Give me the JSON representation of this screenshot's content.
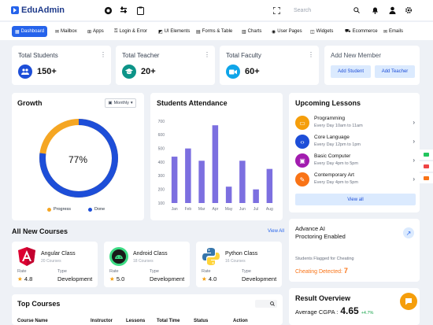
{
  "app": {
    "title": "EduAdmin"
  },
  "search": {
    "placeholder": "Search"
  },
  "nav": [
    {
      "label": "Dashboard",
      "icon": "dashboard-icon"
    },
    {
      "label": "Mailbox",
      "icon": "mail-icon"
    },
    {
      "label": "Apps",
      "icon": "apps-icon"
    },
    {
      "label": "Login & Error",
      "icon": "lock-icon"
    },
    {
      "label": "UI Elements",
      "icon": "ui-icon"
    },
    {
      "label": "Forms & Table",
      "icon": "form-icon"
    },
    {
      "label": "Charts",
      "icon": "chart-icon"
    },
    {
      "label": "User Pages",
      "icon": "user-icon"
    },
    {
      "label": "Widgets",
      "icon": "widget-icon"
    },
    {
      "label": "Ecommerce",
      "icon": "cart-icon"
    },
    {
      "label": "Emails",
      "icon": "email-icon"
    }
  ],
  "stats": [
    {
      "label": "Total Students",
      "value": "150+",
      "color": "#2563eb"
    },
    {
      "label": "Total Teacher",
      "value": "20+",
      "color": "#0d9488"
    },
    {
      "label": "Total Faculty",
      "value": "60+",
      "color": "#0ea5e9"
    }
  ],
  "add_member": {
    "title": "Add New Member",
    "student_btn": "Add Student",
    "teacher_btn": "Add Teacher"
  },
  "growth": {
    "title": "Growth",
    "period": "Monthly",
    "percent_label": "77%",
    "progress": 0.77,
    "legend": [
      {
        "label": "Progress",
        "color": "#f5a623"
      },
      {
        "label": "Done",
        "color": "#1d4ed8"
      }
    ]
  },
  "attendance": {
    "title": "Students Attendance"
  },
  "chart_data": {
    "type": "bar",
    "categories": [
      "Jan",
      "Feb",
      "Mar",
      "Apr",
      "May",
      "Jun",
      "Jul",
      "Aug"
    ],
    "values": [
      440,
      500,
      410,
      670,
      220,
      410,
      200,
      350
    ],
    "ylim": [
      100,
      700
    ],
    "yticks": [
      100,
      200,
      300,
      400,
      500,
      600,
      700
    ],
    "color": "#7c6fe0",
    "xlabel": "",
    "ylabel": "",
    "title": ""
  },
  "lessons": {
    "title": "Upcoming Lessons",
    "items": [
      {
        "name": "Programming",
        "time": "Every Day 10am to 11am",
        "color": "#f59e0b"
      },
      {
        "name": "Core Language",
        "time": "Every Day 12pm to 1pm",
        "color": "#1d4ed8"
      },
      {
        "name": "Basic Computer",
        "time": "Every Day 4pm to 5pm",
        "color": "#a21caf"
      },
      {
        "name": "Contemporary Art",
        "time": "Every Day 4pm to 5pm",
        "color": "#f97316"
      }
    ],
    "view_all": "View all"
  },
  "courses": {
    "title": "All New Courses",
    "view_all": "View All",
    "items": [
      {
        "name": "Angular Class",
        "count": "20 Courses",
        "rate_label": "Rate",
        "rate": "4.8",
        "type_label": "Type",
        "type": "Development"
      },
      {
        "name": "Android Class",
        "count": "18 Courses",
        "rate_label": "Rate",
        "rate": "5.0",
        "type_label": "Type",
        "type": "Development"
      },
      {
        "name": "Python Class",
        "count": "16 Courses",
        "rate_label": "Rate",
        "rate": "4.0",
        "type_label": "Type",
        "type": "Development"
      }
    ]
  },
  "proctoring": {
    "title_line1": "Advance AI",
    "title_line2": "Proctoring Enabled",
    "flagged": "Students Flagged for Cheating",
    "detected_label": "Cheating Detected:",
    "detected_value": "7"
  },
  "top_courses": {
    "title": "Top Courses",
    "columns": [
      "Course Name",
      "Instructor",
      "Lessons",
      "Total Time",
      "Status",
      "Action"
    ]
  },
  "result": {
    "title": "Result Overview",
    "cgpa_label": "Average CGPA :",
    "cgpa": "4.65",
    "delta": "+4.7%"
  }
}
